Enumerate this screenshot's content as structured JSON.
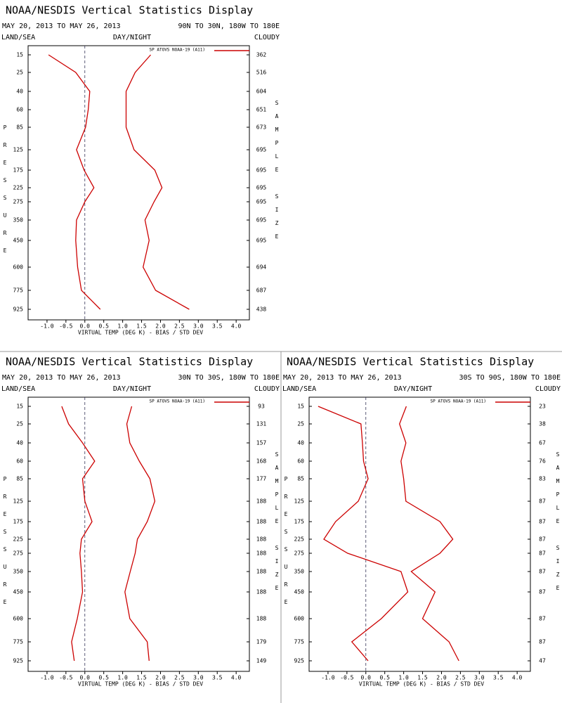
{
  "chart_data": [
    {
      "type": "line",
      "title": "NOAA/NESDIS Vertical Statistics Display",
      "date_range": "MAY 20, 2013 TO MAY 26, 2013",
      "region": "90N TO 30N, 180W TO 180E",
      "land_sea": "LAND/SEA",
      "day_night": "DAY/NIGHT",
      "cloudy": "CLOUDY",
      "legend": "SP ATOVS NOAA-19 (A11)",
      "ylabel": "PRESSURE",
      "y2label": "SAMPLE SIZE",
      "xlabel": "VIRTUAL TEMP (DEG K) - BIAS / STD DEV",
      "categories": [
        15,
        25,
        40,
        60,
        85,
        125,
        175,
        225,
        275,
        350,
        450,
        600,
        775,
        925
      ],
      "sample_sizes": [
        362,
        516,
        604,
        651,
        673,
        695,
        695,
        695,
        695,
        695,
        695,
        694,
        687,
        438
      ],
      "xlim": [
        -1.5,
        4.35
      ],
      "xticks": [
        {
          "value": -1,
          "label": "-1.0"
        },
        -0.5,
        {
          "value": 0,
          "label": "0.0"
        },
        0.5,
        {
          "value": 1,
          "label": "1.0"
        },
        1.5,
        {
          "value": 2,
          "label": "2.0"
        },
        2.5,
        {
          "value": 3,
          "label": "3.0"
        },
        3.5,
        {
          "value": 4,
          "label": "4.0"
        }
      ],
      "series": [
        {
          "color": "#cc0000",
          "values": [
            -0.96,
            -0.24,
            0.13,
            0.09,
            0.02,
            -0.22,
            -0.02,
            0.24,
            0.0,
            -0.22,
            -0.24,
            -0.19,
            -0.09,
            0.41
          ]
        },
        {
          "color": "#cc0000",
          "values": [
            1.74,
            1.33,
            1.09,
            1.09,
            1.09,
            1.3,
            1.85,
            2.04,
            1.83,
            1.59,
            1.7,
            1.54,
            1.87,
            2.76
          ]
        }
      ]
    },
    {
      "type": "line",
      "title": "NOAA/NESDIS Vertical Statistics Display",
      "date_range": "MAY 20, 2013 TO MAY 26, 2013",
      "region": "30N TO 30S, 180W TO 180E",
      "land_sea": "LAND/SEA",
      "day_night": "DAY/NIGHT",
      "cloudy": "CLOUDY",
      "legend": "SP ATOVS NOAA-19 (A11)",
      "ylabel": "PRESSURE",
      "y2label": "SAMPLE SIZE",
      "xlabel": "VIRTUAL TEMP (DEG K) - BIAS / STD DEV",
      "categories": [
        15,
        25,
        40,
        60,
        85,
        125,
        175,
        225,
        275,
        350,
        450,
        600,
        775,
        925
      ],
      "sample_sizes": [
        93,
        131,
        157,
        168,
        177,
        188,
        188,
        188,
        188,
        188,
        188,
        188,
        179,
        149
      ],
      "xlim": [
        -1.5,
        4.35
      ],
      "xticks": [
        {
          "value": -1,
          "label": "-1.0"
        },
        -0.5,
        {
          "value": 0,
          "label": "0.0"
        },
        0.5,
        {
          "value": 1,
          "label": "1.0"
        },
        1.5,
        {
          "value": 2,
          "label": "2.0"
        },
        2.5,
        {
          "value": 3,
          "label": "3.0"
        },
        3.5,
        {
          "value": 4,
          "label": "4.0"
        }
      ],
      "series": [
        {
          "color": "#cc0000",
          "values": [
            -0.61,
            -0.43,
            -0.06,
            0.26,
            -0.06,
            0.0,
            0.19,
            -0.09,
            -0.13,
            -0.09,
            -0.06,
            -0.2,
            -0.35,
            -0.28
          ]
        },
        {
          "color": "#cc0000",
          "values": [
            1.24,
            1.11,
            1.19,
            1.44,
            1.72,
            1.85,
            1.65,
            1.39,
            1.33,
            1.2,
            1.06,
            1.19,
            1.65,
            1.7
          ]
        }
      ]
    },
    {
      "type": "line",
      "title": "NOAA/NESDIS Vertical Statistics Display",
      "date_range": "MAY 20, 2013 TO MAY 26, 2013",
      "region": "30S TO 90S, 180W TO 180E",
      "land_sea": "LAND/SEA",
      "day_night": "DAY/NIGHT",
      "cloudy": "CLOUDY",
      "legend": "SP ATOVS NOAA-19 (A11)",
      "ylabel": "PRESSURE",
      "y2label": "SAMPLE SIZE",
      "xlabel": "VIRTUAL TEMP (DEG K) - BIAS / STD DEV",
      "categories": [
        15,
        25,
        40,
        60,
        85,
        125,
        175,
        225,
        275,
        350,
        450,
        600,
        775,
        925
      ],
      "sample_sizes": [
        23,
        38,
        67,
        76,
        83,
        87,
        87,
        87,
        87,
        87,
        87,
        87,
        87,
        47
      ],
      "xlim": [
        -1.5,
        4.35
      ],
      "xticks": [
        {
          "value": -1,
          "label": "-1.0"
        },
        -0.5,
        {
          "value": 0,
          "label": "0.0"
        },
        0.5,
        {
          "value": 1,
          "label": "1.0"
        },
        1.5,
        {
          "value": 2,
          "label": "2.0"
        },
        2.5,
        {
          "value": 3,
          "label": "3.0"
        },
        3.5,
        {
          "value": 4,
          "label": "4.0"
        }
      ],
      "series": [
        {
          "color": "#cc0000",
          "values": [
            -1.26,
            -0.13,
            -0.09,
            -0.06,
            0.06,
            -0.2,
            -0.8,
            -1.11,
            -0.48,
            0.93,
            1.11,
            0.41,
            -0.37,
            0.06
          ]
        },
        {
          "color": "#cc0000",
          "values": [
            1.07,
            0.89,
            1.06,
            0.93,
            1.0,
            1.06,
            1.96,
            2.3,
            1.96,
            1.2,
            1.83,
            1.5,
            2.2,
            2.46
          ]
        }
      ]
    }
  ]
}
